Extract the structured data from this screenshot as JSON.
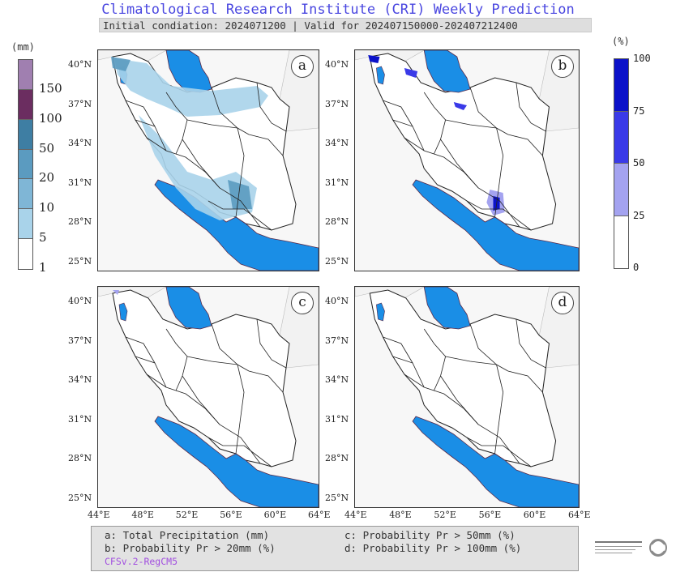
{
  "header": {
    "title": "Climatological Research Institute (CRI) Weekly Prediction",
    "subtitle": "Initial condiation: 2024071200 | Valid for 202407150000-202407212400"
  },
  "colorbar_left": {
    "unit": "(mm)",
    "levels": [
      "150",
      "100",
      "50",
      "20",
      "10",
      "5",
      "1"
    ],
    "colors": [
      "#a07fb0",
      "#6b2d60",
      "#3e7ea3",
      "#5b9bc0",
      "#7fb6d6",
      "#a9d3ea",
      "#ffffff"
    ]
  },
  "colorbar_right": {
    "unit": "(%)",
    "levels": [
      "100",
      "75",
      "50",
      "25",
      "0"
    ],
    "colors": [
      "#0b12c9",
      "#3a3ae8",
      "#a4a3f0",
      "#ffffff"
    ]
  },
  "panels": [
    {
      "letter": "a"
    },
    {
      "letter": "b"
    },
    {
      "letter": "c"
    },
    {
      "letter": "d"
    }
  ],
  "axes": {
    "lat_labels": [
      "40°N",
      "37°N",
      "34°N",
      "31°N",
      "28°N",
      "25°N"
    ],
    "lon_labels": [
      "44°E",
      "48°E",
      "52°E",
      "56°E",
      "60°E",
      "64°E"
    ]
  },
  "legend": {
    "a": "a: Total Precipitation (mm)",
    "b": "b: Probability Pr > 20mm (%)",
    "c": "c: Probability Pr > 50mm (%)",
    "d": "d: Probability Pr > 100mm (%)",
    "model": "CFSv.2-RegCM5"
  },
  "colors": {
    "water": "#1a8ee6",
    "title": "#4a47e0",
    "model": "#a24fe0"
  }
}
